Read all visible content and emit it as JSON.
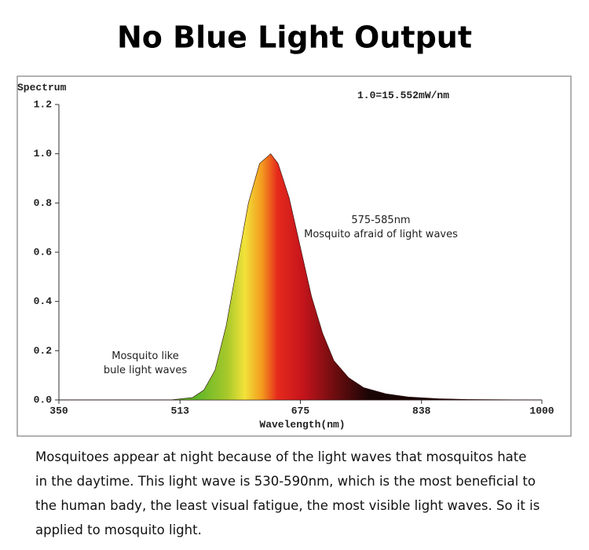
{
  "chart_data": {
    "type": "area",
    "title": "No Blue Light Output",
    "y_label": "Spectrum",
    "x_label": "Wavelength(nm)",
    "note": "1.0=15.552mW/nm",
    "annotations": [
      "575-585nm",
      "Mosquito afraid of light waves",
      "Mosquito like",
      "bule light waves"
    ],
    "x": [
      350,
      500,
      530,
      545,
      560,
      575,
      590,
      605,
      620,
      635,
      645,
      660,
      675,
      690,
      705,
      720,
      740,
      760,
      790,
      820,
      860,
      900,
      1000
    ],
    "values": [
      0,
      0,
      0.01,
      0.04,
      0.12,
      0.3,
      0.55,
      0.8,
      0.96,
      1.0,
      0.96,
      0.82,
      0.62,
      0.42,
      0.27,
      0.16,
      0.09,
      0.05,
      0.025,
      0.012,
      0.005,
      0.002,
      0
    ],
    "xlim": [
      350,
      1000
    ],
    "xticks": [
      350,
      513,
      675,
      838,
      1000
    ],
    "ylim": [
      0,
      1.2
    ],
    "yticks": [
      {
        "value": 0,
        "label": "0.0"
      },
      {
        "value": 0.2,
        "label": "0.2"
      },
      {
        "value": 0.4,
        "label": "0.4"
      },
      {
        "value": 0.6,
        "label": "0.6"
      },
      {
        "value": 0.8,
        "label": "0.8"
      },
      {
        "value": 1.0,
        "label": "1.0"
      },
      {
        "value": 1.2,
        "label": "1.2"
      }
    ]
  },
  "description": [
    "Mosquitoes appear at night because of the light waves that mosquitos hate",
    "in the daytime. This light wave is 530-590nm, which is the most beneficial to",
    "the human bady, the least visual fatigue, the most visible light waves. So it is",
    "applied to mosquito light."
  ]
}
